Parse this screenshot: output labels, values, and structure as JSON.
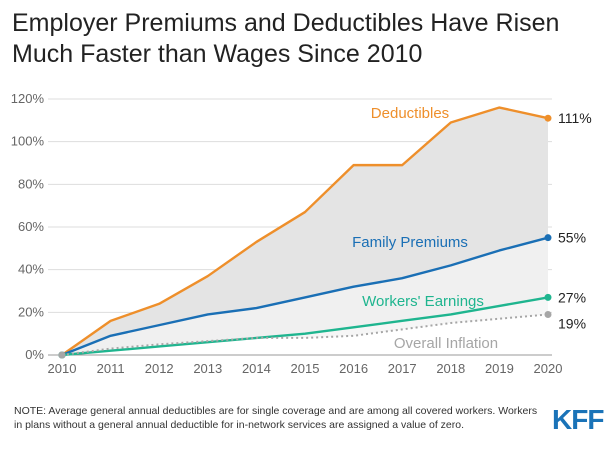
{
  "header": {
    "title": "Employer Premiums and Deductibles Have Risen Much Faster than Wages Since 2010"
  },
  "footer": {
    "note": "NOTE: Average general annual deductibles are for single coverage and are among all covered workers. Workers in plans without a general annual deductible for in-network services are assigned a value of zero.",
    "logo": "KFF"
  },
  "chart_data": {
    "type": "line",
    "title": "Employer Premiums and Deductibles Have Risen Much Faster than Wages Since 2010",
    "xlabel": "",
    "ylabel": "",
    "x": [
      "2010",
      "2011",
      "2012",
      "2013",
      "2014",
      "2015",
      "2016",
      "2017",
      "2018",
      "2019",
      "2020"
    ],
    "ylim": [
      0,
      120
    ],
    "yticks": [
      "0%",
      "20%",
      "40%",
      "60%",
      "80%",
      "100%",
      "120%"
    ],
    "grid": true,
    "series": [
      {
        "name": "Deductibles",
        "values": [
          0,
          16,
          24,
          37,
          53,
          67,
          89,
          89,
          109,
          116,
          111
        ],
        "end_label": "111%",
        "color": "#ee8f2b"
      },
      {
        "name": "Family Premiums",
        "values": [
          0,
          9,
          14,
          19,
          22,
          27,
          32,
          36,
          42,
          49,
          55
        ],
        "end_label": "55%",
        "color": "#1a6fb5"
      },
      {
        "name": "Workers' Earnings",
        "values": [
          0,
          2,
          4,
          6,
          8,
          10,
          13,
          16,
          19,
          23,
          27
        ],
        "end_label": "27%",
        "color": "#1fb58f"
      },
      {
        "name": "Overall Inflation",
        "values": [
          0,
          3,
          5,
          6.5,
          8,
          8,
          9,
          12,
          15,
          17,
          19
        ],
        "end_label": "19%",
        "color": "#a6a6a6",
        "dashed": true
      }
    ]
  }
}
